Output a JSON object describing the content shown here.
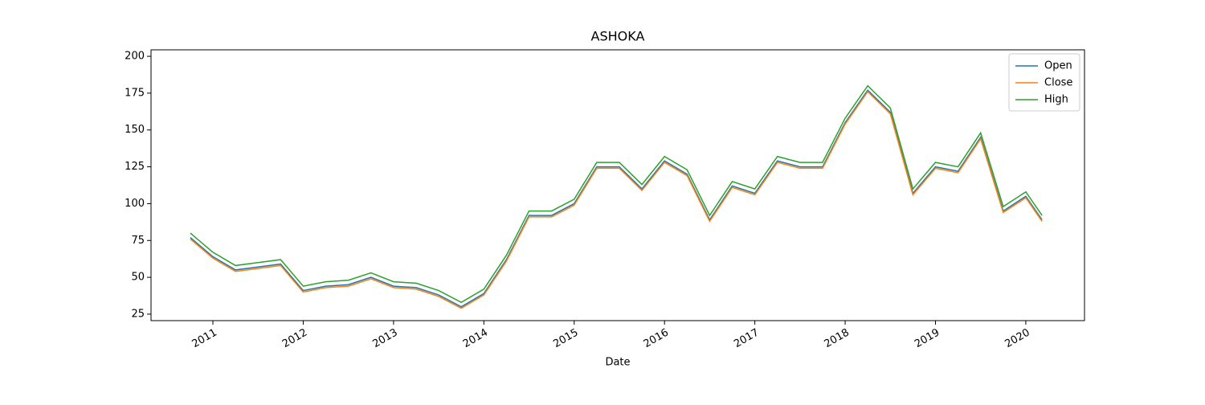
{
  "chart_data": {
    "type": "line",
    "title": "ASHOKA",
    "xlabel": "Date",
    "x": [
      2010.75,
      2011,
      2011.25,
      2011.5,
      2011.75,
      2012,
      2012.25,
      2012.5,
      2012.75,
      2013,
      2013.25,
      2013.5,
      2013.75,
      2014,
      2014.25,
      2014.5,
      2014.75,
      2015,
      2015.25,
      2015.5,
      2015.75,
      2016,
      2016.25,
      2016.5,
      2016.75,
      2017,
      2017.25,
      2017.5,
      2017.75,
      2018,
      2018.25,
      2018.5,
      2018.75,
      2019,
      2019.25,
      2019.5,
      2019.75,
      2020,
      2020.18
    ],
    "series": [
      {
        "name": "Open",
        "color": "#1f77b4",
        "values": [
          77,
          64,
          55,
          57,
          59,
          41,
          44,
          45,
          50,
          44,
          43,
          38,
          30,
          39,
          62,
          92,
          92,
          100,
          125,
          125,
          110,
          129,
          120,
          89,
          112,
          107,
          129,
          125,
          125,
          155,
          177,
          162,
          107,
          125,
          122,
          145,
          95,
          105,
          89
        ]
      },
      {
        "name": "Close",
        "color": "#ff7f0e",
        "values": [
          76,
          63,
          54,
          56,
          58,
          40,
          43,
          44,
          49,
          43,
          42,
          37,
          29,
          38,
          61,
          91,
          91,
          99,
          124,
          124,
          109,
          128,
          119,
          88,
          111,
          106,
          128,
          124,
          124,
          154,
          176,
          161,
          106,
          124,
          121,
          144,
          94,
          104,
          88
        ]
      },
      {
        "name": "High",
        "color": "#2ca02c",
        "values": [
          80,
          67,
          58,
          60,
          62,
          44,
          47,
          48,
          53,
          47,
          46,
          41,
          33,
          42,
          65,
          95,
          95,
          103,
          128,
          128,
          113,
          132,
          123,
          92,
          115,
          110,
          132,
          128,
          128,
          158,
          180,
          165,
          110,
          128,
          125,
          148,
          98,
          108,
          92
        ]
      }
    ],
    "xlim": [
      2010.315,
      2020.65
    ],
    "xticks": [
      2011,
      2012,
      2013,
      2014,
      2015,
      2016,
      2017,
      2018,
      2019,
      2020
    ],
    "ylim": [
      20.6,
      204.4
    ],
    "yticks": [
      25,
      50,
      75,
      100,
      125,
      150,
      175,
      200
    ],
    "grid": false,
    "legend": "upper right"
  }
}
